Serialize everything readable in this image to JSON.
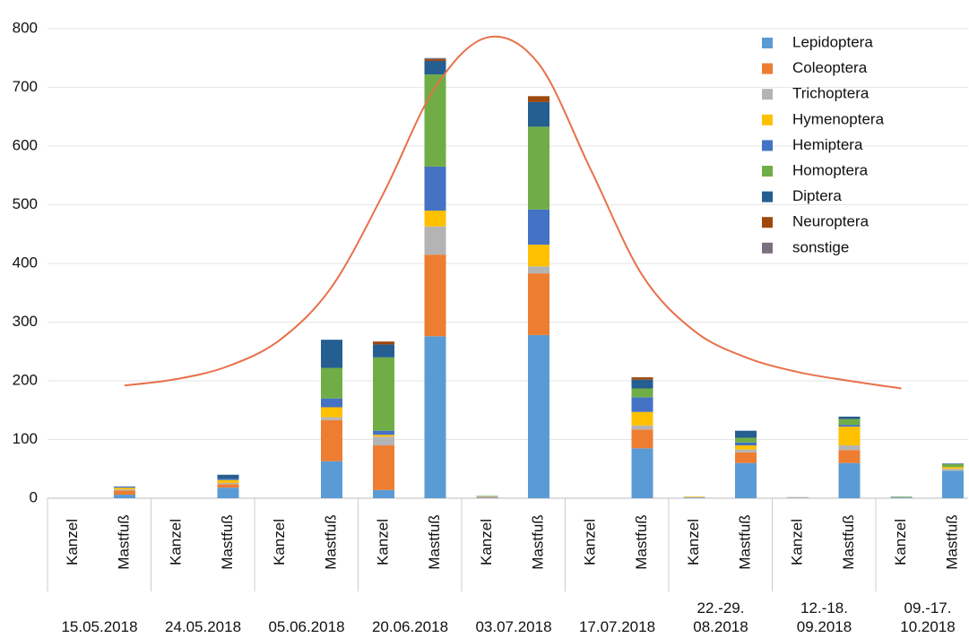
{
  "chart_data": {
    "type": "stacked-bar",
    "categories": [
      "Kanzel",
      "Mastfuß",
      "Kanzel",
      "Mastfuß",
      "Kanzel",
      "Mastfuß",
      "Kanzel",
      "Mastfuß",
      "Kanzel",
      "Mastfuß",
      "Kanzel",
      "Mastfuß",
      "Kanzel",
      "Mastfuß",
      "Kanzel",
      "Mastfuß",
      "Kanzel",
      "Mastfuß"
    ],
    "groups": [
      "15.05.2018",
      "24.05.2018",
      "05.06.2018",
      "20.06.2018",
      "03.07.2018",
      "17.07.2018",
      "22.-29.\n08.2018",
      "12.-18.\n09.2018",
      "09.-17.\n10.2018"
    ],
    "series": [
      {
        "name": "Lepidoptera",
        "color": "#5b9bd5",
        "values": [
          0,
          6,
          0,
          18,
          0,
          63,
          14,
          276,
          1,
          278,
          0,
          85,
          1,
          60,
          0,
          60,
          1,
          47
        ]
      },
      {
        "name": "Coleoptera",
        "color": "#ed7d31",
        "values": [
          0,
          7,
          0,
          6,
          0,
          70,
          76,
          139,
          1,
          105,
          0,
          32,
          0,
          18,
          0,
          22,
          0,
          0
        ]
      },
      {
        "name": "Trichoptera",
        "color": "#b4b4b4",
        "values": [
          0,
          2,
          0,
          2,
          0,
          5,
          15,
          48,
          1,
          12,
          0,
          7,
          1,
          5,
          2,
          8,
          1,
          3
        ]
      },
      {
        "name": "Hymenoptera",
        "color": "#ffc000",
        "values": [
          0,
          3,
          0,
          5,
          0,
          17,
          3,
          27,
          0,
          37,
          0,
          23,
          1,
          7,
          0,
          32,
          0,
          3
        ]
      },
      {
        "name": "Hemiptera",
        "color": "#4472c4",
        "values": [
          0,
          2,
          0,
          2,
          0,
          15,
          7,
          75,
          0,
          60,
          0,
          25,
          0,
          5,
          0,
          3,
          0,
          0
        ]
      },
      {
        "name": "Homoptera",
        "color": "#70ad47",
        "values": [
          0,
          0,
          0,
          0,
          0,
          52,
          125,
          157,
          1,
          141,
          0,
          15,
          0,
          8,
          0,
          10,
          1,
          5
        ]
      },
      {
        "name": "Diptera",
        "color": "#255e91",
        "values": [
          0,
          0,
          0,
          7,
          0,
          48,
          22,
          23,
          0,
          42,
          0,
          15,
          0,
          12,
          0,
          4,
          0,
          1
        ]
      },
      {
        "name": "Neuroptera",
        "color": "#9e480e",
        "values": [
          0,
          0,
          0,
          0,
          0,
          0,
          5,
          3,
          0,
          10,
          0,
          4,
          0,
          0,
          0,
          0,
          0,
          0
        ]
      },
      {
        "name": "sonstige",
        "color": "#7a7080",
        "values": [
          0,
          0,
          0,
          0,
          0,
          0,
          0,
          2,
          0,
          0,
          0,
          0,
          0,
          0,
          0,
          0,
          0,
          0
        ]
      }
    ],
    "trend": {
      "color": "#e8704a",
      "values": [
        null,
        192,
        203,
        225,
        270,
        360,
        520,
        700,
        785,
        740,
        560,
        380,
        285,
        240,
        215,
        200,
        187,
        null
      ]
    },
    "ylim": [
      0,
      800
    ],
    "yticks": [
      0,
      100,
      200,
      300,
      400,
      500,
      600,
      700,
      800
    ],
    "grid": true,
    "legend": "upper right"
  }
}
